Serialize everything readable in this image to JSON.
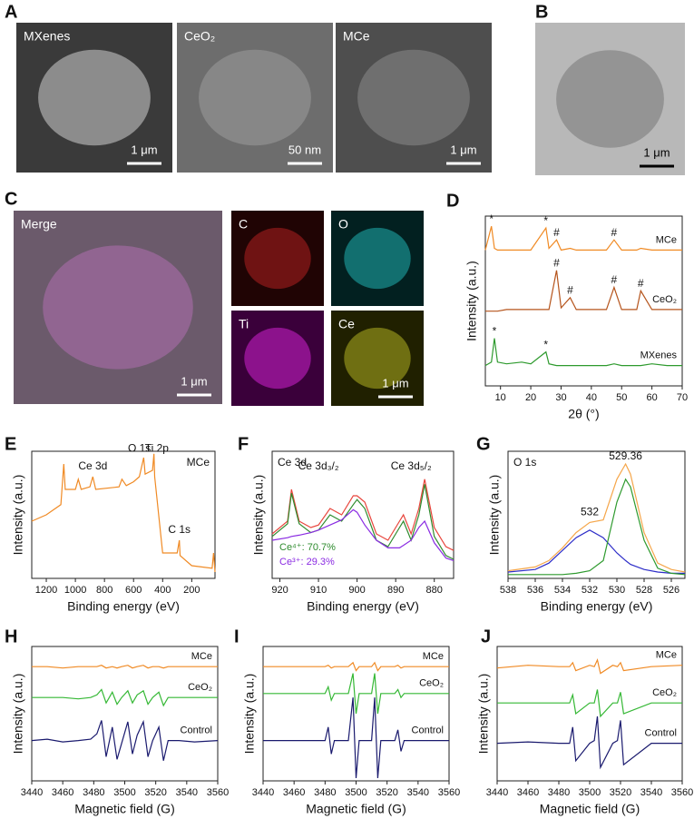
{
  "figures": [
    {
      "panel": "A",
      "images": [
        {
          "label": "MXenes",
          "scale_bar": "1 μm"
        },
        {
          "label": "CeO₂",
          "scale_bar": "50 nm"
        },
        {
          "label": "MCe",
          "scale_bar": "1 μm"
        }
      ]
    },
    {
      "panel": "B",
      "images": [
        {
          "scale_bar": "1 μm"
        }
      ]
    },
    {
      "panel": "C",
      "images": [
        {
          "label": "Merge",
          "scale_bar": "1 μm"
        },
        {
          "label": "C"
        },
        {
          "label": "O"
        },
        {
          "label": "Ti"
        },
        {
          "label": "Ce",
          "scale_bar": "1 μm"
        }
      ]
    }
  ],
  "chart_data": [
    {
      "panel": "D",
      "type": "line",
      "xlabel": "2θ (°)",
      "ylabel": "Intensity (a.u.)",
      "xlim": [
        5,
        70
      ],
      "xticks": [
        10,
        20,
        30,
        40,
        50,
        60,
        70
      ],
      "ylim": [
        0,
        100
      ],
      "legend": "inline",
      "x": [
        5,
        7,
        8,
        9,
        12,
        17,
        20,
        25,
        26,
        28.5,
        30,
        33,
        35,
        40,
        45,
        47.5,
        50,
        55,
        56.3,
        60,
        65,
        70
      ],
      "series": [
        {
          "name": "MCe",
          "color": "#f08a24",
          "values": [
            80,
            94,
            81,
            80,
            80,
            80,
            80,
            93,
            81,
            86,
            80,
            81,
            80,
            80,
            80,
            86,
            80,
            80,
            81,
            80,
            80,
            80
          ]
        },
        {
          "name": "CeO₂",
          "color": "#b5541c",
          "values": [
            44,
            44,
            44,
            44,
            45,
            45,
            45,
            45,
            45,
            68,
            46,
            52,
            45,
            45,
            45,
            58,
            45,
            45,
            56,
            45,
            45,
            45
          ]
        },
        {
          "name": "MXenes",
          "color": "#2e9a2e",
          "values": [
            12,
            14,
            28,
            14,
            13,
            14,
            13,
            20,
            13,
            12,
            12,
            12,
            12,
            12,
            12,
            13,
            12,
            12,
            12,
            13,
            12,
            12
          ]
        }
      ],
      "annotations": [
        {
          "text": "*",
          "x": 7,
          "y": 98
        },
        {
          "text": "*",
          "x": 25,
          "y": 97
        },
        {
          "text": "#",
          "x": 28.5,
          "y": 90
        },
        {
          "text": "#",
          "x": 47.5,
          "y": 90
        },
        {
          "text": "#",
          "x": 28.5,
          "y": 72
        },
        {
          "text": "#",
          "x": 33,
          "y": 56
        },
        {
          "text": "#",
          "x": 47.5,
          "y": 62
        },
        {
          "text": "#",
          "x": 56.3,
          "y": 60
        },
        {
          "text": "*",
          "x": 8,
          "y": 32
        },
        {
          "text": "*",
          "x": 25,
          "y": 24
        }
      ]
    },
    {
      "panel": "E",
      "type": "line",
      "title": "MCe",
      "xlabel": "Binding energy (eV)",
      "ylabel": "Intensity (a.u.)",
      "xlim": [
        1300,
        40
      ],
      "xticks": [
        1200,
        1000,
        800,
        600,
        400,
        200
      ],
      "ylim": [
        0,
        100
      ],
      "legend": "none",
      "x": [
        1300,
        1200,
        1100,
        1080,
        1070,
        1000,
        980,
        960,
        900,
        880,
        860,
        700,
        680,
        650,
        600,
        560,
        530,
        520,
        470,
        460,
        455,
        400,
        300,
        285,
        280,
        200,
        60,
        50,
        40
      ],
      "series": [
        {
          "color": "#f08a24",
          "values": [
            45,
            50,
            58,
            90,
            70,
            70,
            78,
            70,
            72,
            80,
            70,
            72,
            78,
            73,
            76,
            80,
            95,
            82,
            85,
            98,
            80,
            20,
            20,
            30,
            18,
            10,
            8,
            20,
            5
          ]
        }
      ],
      "annotations": [
        {
          "text": "Ce 3d",
          "x": 880,
          "y": 88
        },
        {
          "text": "O 1s",
          "x": 560,
          "y": 102
        },
        {
          "text": "Ti 2p",
          "x": 440,
          "y": 102
        },
        {
          "text": "C 1s",
          "x": 285,
          "y": 38
        }
      ]
    },
    {
      "panel": "F",
      "type": "line",
      "title": "Ce 3d",
      "xlabel": "Binding energy (eV)",
      "ylabel": "Intensity (a.u.)",
      "xlim": [
        922,
        875
      ],
      "xticks": [
        920,
        910,
        900,
        890,
        880
      ],
      "ylim": [
        0,
        100
      ],
      "legend": "bottom-left",
      "x": [
        922,
        918,
        917,
        915,
        912,
        910,
        907,
        904,
        901,
        900,
        898,
        895,
        892,
        889,
        888,
        886,
        884,
        882.5,
        880,
        877,
        875
      ],
      "series": [
        {
          "color": "#e8453c",
          "values": [
            35,
            45,
            70,
            45,
            40,
            42,
            55,
            50,
            65,
            65,
            60,
            35,
            30,
            45,
            50,
            35,
            55,
            78,
            40,
            25,
            22
          ]
        },
        {
          "name": "Ce⁴⁺: 70.7%",
          "color": "#2e8b2e",
          "values": [
            33,
            43,
            67,
            43,
            36,
            38,
            50,
            45,
            58,
            62,
            55,
            30,
            25,
            40,
            45,
            30,
            50,
            74,
            33,
            18,
            15
          ]
        },
        {
          "name": "Ce³⁺: 29.3%",
          "color": "#8a2be2",
          "values": [
            30,
            32,
            33,
            34,
            36,
            38,
            42,
            46,
            54,
            52,
            42,
            30,
            24,
            24,
            26,
            30,
            40,
            45,
            28,
            16,
            14
          ]
        }
      ],
      "annotations": [
        {
          "text": "Ce 3d₃/₂",
          "x": 910,
          "y": 88
        },
        {
          "text": "Ce 3d₅/₂",
          "x": 886,
          "y": 88
        }
      ]
    },
    {
      "panel": "G",
      "type": "line",
      "title": "O 1s",
      "xlabel": "Binding energy (eV)",
      "ylabel": "Intensity (a.u.)",
      "xlim": [
        538,
        525
      ],
      "xticks": [
        538,
        536,
        534,
        532,
        530,
        528,
        526
      ],
      "ylim": [
        0,
        100
      ],
      "legend": "none",
      "x": [
        538,
        536,
        535,
        534,
        533,
        532,
        531,
        530,
        529.36,
        529,
        528,
        527,
        526,
        525
      ],
      "series": [
        {
          "color": "#f5a64a",
          "values": [
            6,
            9,
            14,
            24,
            36,
            44,
            46,
            78,
            90,
            82,
            36,
            12,
            7,
            5
          ]
        },
        {
          "color": "#2d2dc8",
          "values": [
            5,
            7,
            12,
            22,
            32,
            38,
            32,
            20,
            14,
            11,
            7,
            5,
            4,
            4
          ]
        },
        {
          "color": "#2e9a2e",
          "values": [
            3,
            3,
            3,
            3,
            4,
            6,
            14,
            60,
            78,
            72,
            30,
            8,
            4,
            3
          ]
        }
      ],
      "annotations": [
        {
          "text": "532",
          "x": 532,
          "y": 52
        },
        {
          "text": "529.36",
          "x": 529.36,
          "y": 96
        }
      ]
    },
    {
      "panel": "H",
      "type": "line",
      "xlabel": "Magnetic field (G)",
      "ylabel": "Intensity (a.u.)",
      "xlim": [
        3440,
        3560
      ],
      "xticks": [
        3440,
        3460,
        3480,
        3500,
        3520,
        3540,
        3560
      ],
      "ylim": [
        0,
        100
      ],
      "legend": "inline",
      "x": [
        3440,
        3450,
        3460,
        3470,
        3478,
        3482,
        3485,
        3488,
        3492,
        3495,
        3498,
        3502,
        3505,
        3508,
        3512,
        3515,
        3518,
        3522,
        3525,
        3528,
        3535,
        3545,
        3560
      ],
      "series": [
        {
          "name": "MCe",
          "color": "#f08a24",
          "values": [
            85,
            85,
            84,
            85,
            85,
            85,
            86,
            84,
            85,
            84,
            85,
            86,
            84,
            85,
            86,
            84,
            85,
            85,
            84,
            85,
            85,
            85,
            85
          ]
        },
        {
          "name": "CeO₂",
          "color": "#35b835",
          "values": [
            62,
            62,
            62,
            61,
            62,
            64,
            68,
            58,
            66,
            57,
            62,
            67,
            58,
            64,
            67,
            57,
            62,
            66,
            56,
            62,
            62,
            62,
            62
          ]
        },
        {
          "name": "Control",
          "color": "#1a1a6e",
          "values": [
            30,
            31,
            29,
            30,
            31,
            35,
            45,
            18,
            40,
            16,
            28,
            44,
            20,
            34,
            44,
            18,
            30,
            40,
            15,
            30,
            30,
            29,
            30
          ]
        }
      ]
    },
    {
      "panel": "I",
      "type": "line",
      "xlabel": "Magnetic field (G)",
      "ylabel": "Intensity (a.u.)",
      "xlim": [
        3440,
        3560
      ],
      "xticks": [
        3440,
        3460,
        3480,
        3500,
        3520,
        3540,
        3560
      ],
      "ylim": [
        0,
        100
      ],
      "legend": "inline",
      "x": [
        3440,
        3470,
        3480,
        3482,
        3484,
        3486,
        3495,
        3498,
        3500,
        3502,
        3510,
        3512,
        3514,
        3516,
        3525,
        3527,
        3529,
        3531,
        3545,
        3560
      ],
      "series": [
        {
          "name": "MCe",
          "color": "#f08a24",
          "values": [
            85,
            85,
            85,
            86,
            84,
            85,
            85,
            88,
            82,
            85,
            85,
            88,
            82,
            85,
            85,
            86,
            84,
            85,
            85,
            85
          ]
        },
        {
          "name": "CeO₂",
          "color": "#35b835",
          "values": [
            65,
            65,
            65,
            70,
            60,
            65,
            65,
            80,
            50,
            65,
            65,
            80,
            50,
            65,
            65,
            68,
            62,
            65,
            65,
            65
          ]
        },
        {
          "name": "Control",
          "color": "#1a1a6e",
          "values": [
            30,
            30,
            30,
            40,
            20,
            30,
            30,
            62,
            2,
            30,
            30,
            62,
            2,
            30,
            30,
            38,
            22,
            30,
            30,
            30
          ]
        }
      ]
    },
    {
      "panel": "J",
      "type": "line",
      "xlabel": "Magnetic field (G)",
      "ylabel": "Intensity (a.u.)",
      "xlim": [
        3440,
        3560
      ],
      "xticks": [
        3440,
        3460,
        3480,
        3500,
        3520,
        3540,
        3560
      ],
      "ylim": [
        0,
        100
      ],
      "legend": "inline",
      "x": [
        3440,
        3460,
        3480,
        3487,
        3489,
        3491,
        3500,
        3503,
        3505,
        3507,
        3515,
        3518,
        3520,
        3522,
        3540,
        3560
      ],
      "series": [
        {
          "name": "MCe",
          "color": "#f08a24",
          "values": [
            84,
            86,
            85,
            85,
            88,
            82,
            86,
            85,
            90,
            80,
            86,
            85,
            88,
            82,
            85,
            86
          ]
        },
        {
          "name": "CeO₂",
          "color": "#35b835",
          "values": [
            58,
            58,
            58,
            58,
            64,
            50,
            58,
            58,
            68,
            48,
            58,
            58,
            66,
            50,
            58,
            58
          ]
        },
        {
          "name": "Control",
          "color": "#1a1a6e",
          "values": [
            28,
            29,
            28,
            28,
            40,
            15,
            28,
            30,
            48,
            10,
            28,
            30,
            45,
            12,
            28,
            28
          ]
        }
      ]
    }
  ]
}
